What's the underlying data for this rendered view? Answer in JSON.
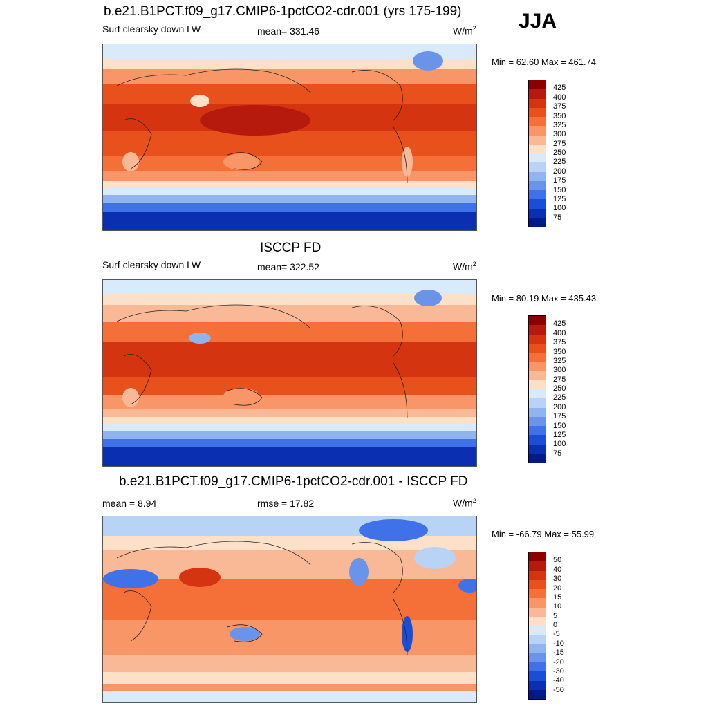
{
  "season": "JJA",
  "panels": [
    {
      "title": "b.e21.B1PCT.f09_g17.CMIP6-1pctCO2-cdr.001 (yrs 175-199)",
      "left_label": "Surf clearsky down LW",
      "center_label": "mean= 331.46",
      "units": "W/m",
      "units_sup": "2",
      "minmax": "Min =  62.60 Max = 461.74",
      "colorbar": {
        "labels": [
          "425",
          "400",
          "375",
          "350",
          "325",
          "300",
          "275",
          "250",
          "225",
          "200",
          "175",
          "150",
          "125",
          "100",
          "75"
        ],
        "colors": [
          "#8b0000",
          "#b51a0d",
          "#d4340f",
          "#e8501c",
          "#f47038",
          "#f89668",
          "#fab996",
          "#fde0c8",
          "#d9ebfb",
          "#b8d3f5",
          "#90b4ee",
          "#6a94ea",
          "#3f72e8",
          "#1b4ed6",
          "#0a2fb0",
          "#001a88"
        ]
      }
    },
    {
      "title": "ISCCP FD",
      "left_label": "Surf clearsky down LW",
      "center_label": "mean= 322.52",
      "units": "W/m",
      "units_sup": "2",
      "minmax": "Min =  80.19 Max = 435.43",
      "colorbar": {
        "labels": [
          "425",
          "400",
          "375",
          "350",
          "325",
          "300",
          "275",
          "250",
          "225",
          "200",
          "175",
          "150",
          "125",
          "100",
          "75"
        ],
        "colors": [
          "#8b0000",
          "#b51a0d",
          "#d4340f",
          "#e8501c",
          "#f47038",
          "#f89668",
          "#fab996",
          "#fde0c8",
          "#d9ebfb",
          "#b8d3f5",
          "#90b4ee",
          "#6a94ea",
          "#3f72e8",
          "#1b4ed6",
          "#0a2fb0",
          "#001a88"
        ]
      }
    },
    {
      "title": "b.e21.B1PCT.f09_g17.CMIP6-1pctCO2-cdr.001 - ISCCP FD",
      "left_label": "mean =   8.94",
      "center_label": "rmse =  17.82",
      "units": "W/m",
      "units_sup": "2",
      "minmax": "Min = -66.79 Max =  55.99",
      "colorbar": {
        "labels": [
          "50",
          "40",
          "30",
          "20",
          "15",
          "10",
          "5",
          "0",
          "-5",
          "-10",
          "-15",
          "-20",
          "-30",
          "-40",
          "-50"
        ],
        "colors": [
          "#8b0000",
          "#b51a0d",
          "#d4340f",
          "#e8501c",
          "#f47038",
          "#f89668",
          "#fab996",
          "#fde0c8",
          "#d9ebfb",
          "#b8d3f5",
          "#90b4ee",
          "#6a94ea",
          "#3f72e8",
          "#1b4ed6",
          "#0a2fb0",
          "#001a88"
        ]
      }
    }
  ]
}
